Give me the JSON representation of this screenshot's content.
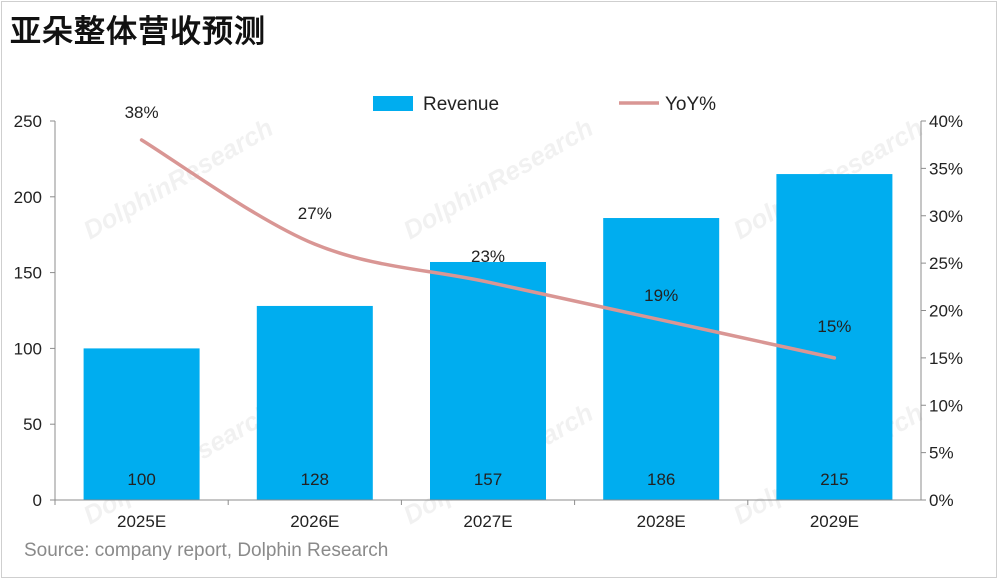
{
  "title": "亚朵整体营收预测",
  "source": "Source: company report, Dolphin Research",
  "watermark": "DolphinResearch",
  "colors": {
    "bar": "#00adef",
    "line": "#d99694",
    "axis": "#8c8c8c"
  },
  "chart_data": {
    "type": "bar",
    "categories": [
      "2025E",
      "2026E",
      "2027E",
      "2028E",
      "2029E"
    ],
    "series": [
      {
        "name": "Revenue",
        "type": "bar",
        "axis": "left",
        "values": [
          100,
          128,
          157,
          186,
          215
        ]
      },
      {
        "name": "YoY%",
        "type": "line",
        "axis": "right",
        "values": [
          38,
          27,
          23,
          19,
          15
        ],
        "labels": [
          "38%",
          "27%",
          "23%",
          "19%",
          "15%"
        ]
      }
    ],
    "y_left": {
      "min": 0,
      "max": 250,
      "ticks": [
        0,
        50,
        100,
        150,
        200,
        250
      ]
    },
    "y_right": {
      "min": 0,
      "max": 40,
      "ticks": [
        "0%",
        "5%",
        "10%",
        "15%",
        "20%",
        "25%",
        "30%",
        "35%",
        "40%"
      ]
    },
    "legend_position": "top",
    "grid": false
  }
}
